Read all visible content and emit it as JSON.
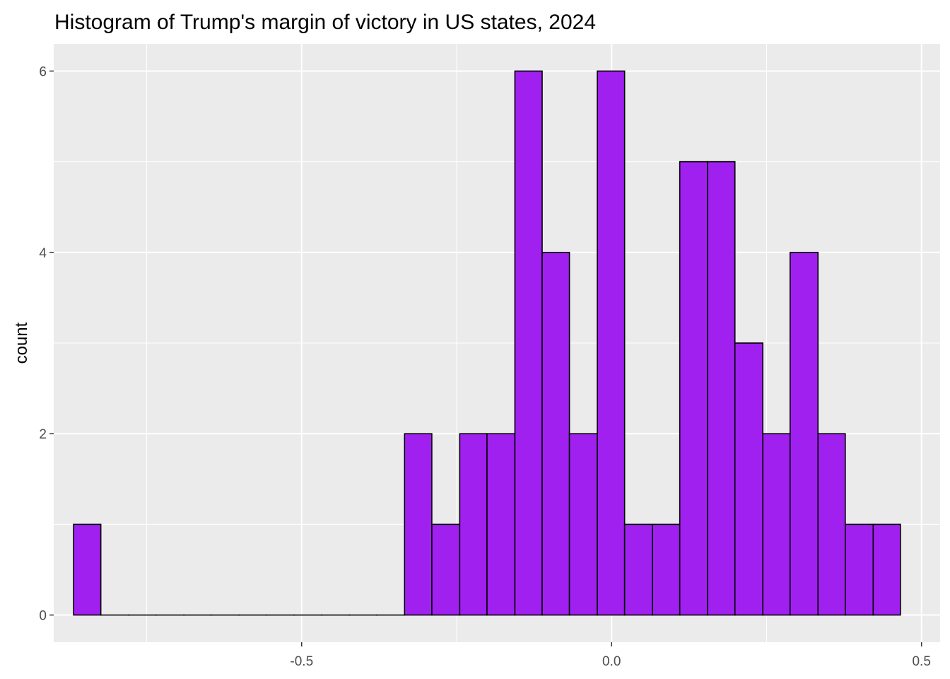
{
  "chart_data": {
    "type": "bar",
    "title": "Histogram of Trump's margin of victory in US states, 2024",
    "xlabel": "",
    "ylabel": "count",
    "bin_edges": [
      -0.868,
      -0.824,
      -0.779,
      -0.735,
      -0.69,
      -0.646,
      -0.601,
      -0.557,
      -0.512,
      -0.468,
      -0.423,
      -0.379,
      -0.334,
      -0.29,
      -0.245,
      -0.201,
      -0.156,
      -0.112,
      -0.068,
      -0.023,
      0.021,
      0.066,
      0.11,
      0.155,
      0.199,
      0.244,
      0.288,
      0.333,
      0.377,
      0.422,
      0.466
    ],
    "counts": [
      1,
      0,
      0,
      0,
      0,
      0,
      0,
      0,
      0,
      0,
      0,
      0,
      2,
      1,
      2,
      2,
      6,
      4,
      2,
      6,
      1,
      1,
      5,
      5,
      3,
      2,
      4,
      2,
      1,
      1
    ],
    "xlim": [
      -0.9,
      0.53
    ],
    "ylim": [
      -0.3,
      6.3
    ],
    "x_ticks": [
      -0.5,
      0.0,
      0.5
    ],
    "x_tick_labels": [
      "-0.5",
      "0.0",
      "0.5"
    ],
    "x_minor_ticks": [
      -0.75,
      -0.25,
      0.25
    ],
    "y_ticks": [
      0,
      2,
      4,
      6
    ],
    "y_tick_labels": [
      "0",
      "2",
      "4",
      "6"
    ],
    "y_minor_ticks": [
      1,
      3,
      5
    ],
    "grid": true,
    "legend": "none",
    "colors": {
      "bar_fill": "#a020f0",
      "bar_stroke": "#000000",
      "panel_background": "#ebebeb",
      "grid": "#ffffff",
      "tick_label": "#4d4d4d",
      "tick_mark": "#333333"
    }
  }
}
